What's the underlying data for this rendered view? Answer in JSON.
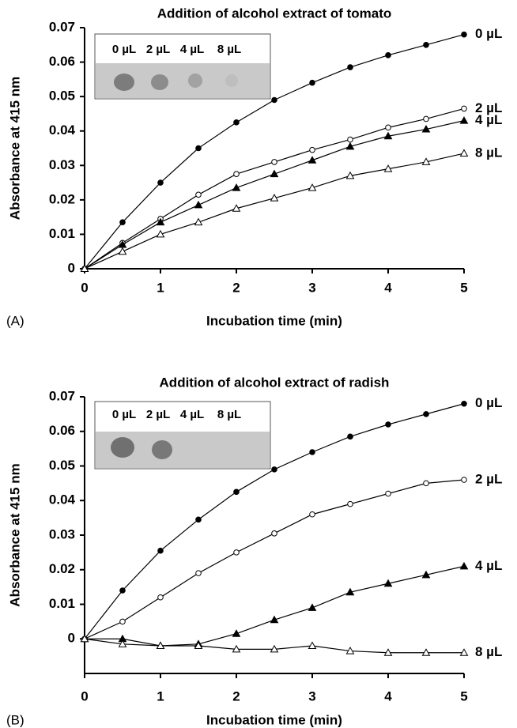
{
  "chart_data": [
    {
      "type": "line",
      "panel_label": "(A)",
      "title": "Addition of alcohol extract of tomato",
      "x_label": "Incubation time (min)",
      "y_label": "Absorbance at 415 nm",
      "inset_labels": [
        "0 µL",
        "2 µL",
        "4 µL",
        "8 µL"
      ],
      "x": [
        0,
        0.5,
        1,
        1.5,
        2,
        2.5,
        3,
        3.5,
        4,
        4.5,
        5
      ],
      "xlim": [
        0,
        5
      ],
      "xticks": [
        0,
        1,
        2,
        3,
        4,
        5
      ],
      "ylim": [
        0,
        0.07
      ],
      "yticks": [
        0,
        0.01,
        0.02,
        0.03,
        0.04,
        0.05,
        0.06,
        0.07
      ],
      "grid": false,
      "series": [
        {
          "name": "0 µL",
          "color": "#000000",
          "marker": "circle",
          "filled": true,
          "values": [
            0,
            0.0135,
            0.025,
            0.035,
            0.0425,
            0.049,
            0.054,
            0.0585,
            0.062,
            0.065,
            0.068
          ]
        },
        {
          "name": "2 µL",
          "color": "#000000",
          "marker": "circle",
          "filled": false,
          "values": [
            0,
            0.0075,
            0.0145,
            0.0215,
            0.0275,
            0.031,
            0.0345,
            0.0375,
            0.041,
            0.0435,
            0.0465
          ]
        },
        {
          "name": "4 µL",
          "color": "#000000",
          "marker": "triangle",
          "filled": true,
          "values": [
            0,
            0.007,
            0.0135,
            0.0185,
            0.0235,
            0.0275,
            0.0315,
            0.0355,
            0.0385,
            0.0405,
            0.043
          ]
        },
        {
          "name": "8 µL",
          "color": "#000000",
          "marker": "triangle",
          "filled": false,
          "values": [
            0,
            0.005,
            0.01,
            0.0135,
            0.0175,
            0.0205,
            0.0235,
            0.027,
            0.029,
            0.031,
            0.0335
          ]
        }
      ]
    },
    {
      "type": "line",
      "panel_label": "(B)",
      "title": "Addition of alcohol extract of radish",
      "x_label": "Incubation time (min)",
      "y_label": "Absorbance at 415 nm",
      "inset_labels": [
        "0 µL",
        "2 µL",
        "4 µL",
        "8 µL"
      ],
      "x": [
        0,
        0.5,
        1,
        1.5,
        2,
        2.5,
        3,
        3.5,
        4,
        4.5,
        5
      ],
      "xlim": [
        0,
        5
      ],
      "xticks": [
        0,
        1,
        2,
        3,
        4,
        5
      ],
      "ylim": [
        -0.01,
        0.07
      ],
      "yticks": [
        0,
        0.01,
        0.02,
        0.03,
        0.04,
        0.05,
        0.06,
        0.07
      ],
      "grid": false,
      "series": [
        {
          "name": "0 µL",
          "color": "#000000",
          "marker": "circle",
          "filled": true,
          "values": [
            0,
            0.014,
            0.0255,
            0.0345,
            0.0425,
            0.049,
            0.054,
            0.0585,
            0.062,
            0.065,
            0.068
          ]
        },
        {
          "name": "2 µL",
          "color": "#000000",
          "marker": "circle",
          "filled": false,
          "values": [
            0,
            0.005,
            0.012,
            0.019,
            0.025,
            0.0305,
            0.036,
            0.039,
            0.042,
            0.045,
            0.046
          ]
        },
        {
          "name": "4 µL",
          "color": "#000000",
          "marker": "triangle",
          "filled": true,
          "values": [
            0,
            0,
            -0.002,
            -0.0015,
            0.0015,
            0.0055,
            0.009,
            0.0135,
            0.016,
            0.0185,
            0.021
          ]
        },
        {
          "name": "8 µL",
          "color": "#000000",
          "marker": "triangle",
          "filled": false,
          "values": [
            0,
            -0.0015,
            -0.002,
            -0.002,
            -0.003,
            -0.003,
            -0.002,
            -0.0035,
            -0.004,
            -0.004,
            -0.004
          ]
        }
      ]
    }
  ]
}
